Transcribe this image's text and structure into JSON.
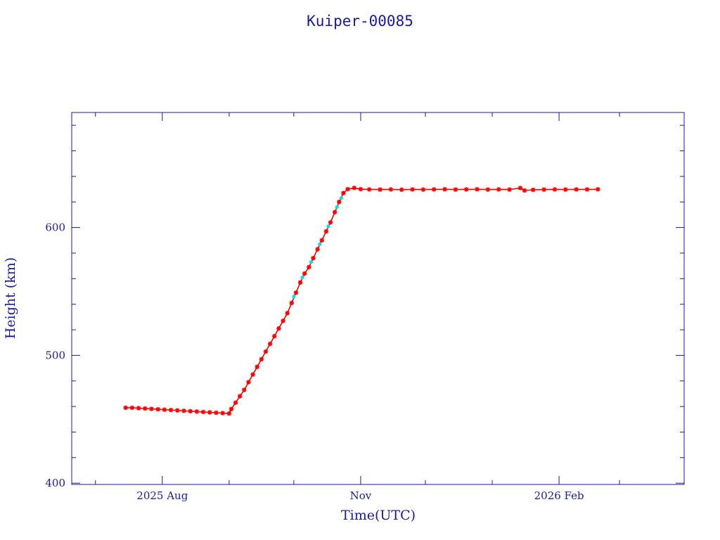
{
  "chart_data": {
    "type": "scatter",
    "title": "Kuiper-00085",
    "xlabel": "Time(UTC)",
    "ylabel": "Height (km)",
    "x_axis": "date",
    "xlim": [
      "2025-06-20",
      "2026-03-31"
    ],
    "ylim": [
      399,
      690
    ],
    "x_ticks": [
      {
        "date": "2025-08-01",
        "label": "2025 Aug"
      },
      {
        "date": "2025-11-01",
        "label": "Nov"
      },
      {
        "date": "2026-02-01",
        "label": "2026 Feb"
      }
    ],
    "y_ticks": [
      400,
      500,
      600
    ],
    "grid": false,
    "colors": {
      "axis": "#1a1a9c",
      "series_primary": "#ff0000",
      "series_secondary": "#00e5e5"
    },
    "series": [
      {
        "color": "#ff0000",
        "marker": "star",
        "points": [
          [
            "2025-07-15",
            459
          ],
          [
            "2025-07-18",
            459
          ],
          [
            "2025-07-21",
            458.7
          ],
          [
            "2025-07-24",
            458.4
          ],
          [
            "2025-07-27",
            458.1
          ],
          [
            "2025-07-30",
            457.8
          ],
          [
            "2025-08-02",
            457.5
          ],
          [
            "2025-08-05",
            457.2
          ],
          [
            "2025-08-08",
            456.9
          ],
          [
            "2025-08-11",
            456.6
          ],
          [
            "2025-08-14",
            456.3
          ],
          [
            "2025-08-17",
            456
          ],
          [
            "2025-08-20",
            455.7
          ],
          [
            "2025-08-23",
            455.4
          ],
          [
            "2025-08-26",
            455.1
          ],
          [
            "2025-08-29",
            454.8
          ],
          [
            "2025-09-01",
            454.5
          ],
          [
            "2025-09-02",
            458
          ],
          [
            "2025-09-04",
            463
          ],
          [
            "2025-09-06",
            468
          ],
          [
            "2025-09-08",
            473
          ],
          [
            "2025-09-10",
            479
          ],
          [
            "2025-09-12",
            485
          ],
          [
            "2025-09-14",
            491
          ],
          [
            "2025-09-16",
            497
          ],
          [
            "2025-09-18",
            503
          ],
          [
            "2025-09-20",
            509
          ],
          [
            "2025-09-22",
            515
          ],
          [
            "2025-09-24",
            521
          ],
          [
            "2025-09-26",
            527
          ],
          [
            "2025-09-28",
            533
          ],
          [
            "2025-09-30",
            541
          ],
          [
            "2025-10-02",
            549
          ],
          [
            "2025-10-04",
            557
          ],
          [
            "2025-10-06",
            564
          ],
          [
            "2025-10-08",
            569
          ],
          [
            "2025-10-10",
            576
          ],
          [
            "2025-10-12",
            583
          ],
          [
            "2025-10-14",
            590
          ],
          [
            "2025-10-16",
            597
          ],
          [
            "2025-10-18",
            604
          ],
          [
            "2025-10-20",
            612
          ],
          [
            "2025-10-22",
            620
          ],
          [
            "2025-10-24",
            627
          ],
          [
            "2025-10-26",
            630
          ],
          [
            "2025-10-29",
            631
          ],
          [
            "2025-11-01",
            630
          ],
          [
            "2025-11-05",
            629.8
          ],
          [
            "2025-11-10",
            629.7
          ],
          [
            "2025-11-15",
            629.8
          ],
          [
            "2025-11-20",
            629.6
          ],
          [
            "2025-11-25",
            629.8
          ],
          [
            "2025-11-30",
            629.7
          ],
          [
            "2025-12-05",
            629.8
          ],
          [
            "2025-12-10",
            629.9
          ],
          [
            "2025-12-15",
            629.7
          ],
          [
            "2025-12-20",
            629.8
          ],
          [
            "2025-12-25",
            629.9
          ],
          [
            "2025-12-30",
            629.7
          ],
          [
            "2026-01-04",
            629.8
          ],
          [
            "2026-01-09",
            629.7
          ],
          [
            "2026-01-14",
            630.9
          ],
          [
            "2026-01-16",
            629
          ],
          [
            "2026-01-20",
            629.5
          ],
          [
            "2026-01-25",
            629.7
          ],
          [
            "2026-01-30",
            629.8
          ],
          [
            "2026-02-04",
            629.7
          ],
          [
            "2026-02-09",
            629.8
          ],
          [
            "2026-02-14",
            629.8
          ],
          [
            "2026-02-19",
            629.9
          ]
        ]
      },
      {
        "color": "#00e5e5",
        "marker": "dot",
        "points": [
          [
            "2025-10-01",
            546
          ],
          [
            "2025-10-05",
            561
          ],
          [
            "2025-10-09",
            573
          ],
          [
            "2025-10-13",
            587
          ],
          [
            "2025-10-17",
            601
          ],
          [
            "2025-10-21",
            616
          ],
          [
            "2025-10-23",
            623
          ]
        ]
      }
    ]
  }
}
